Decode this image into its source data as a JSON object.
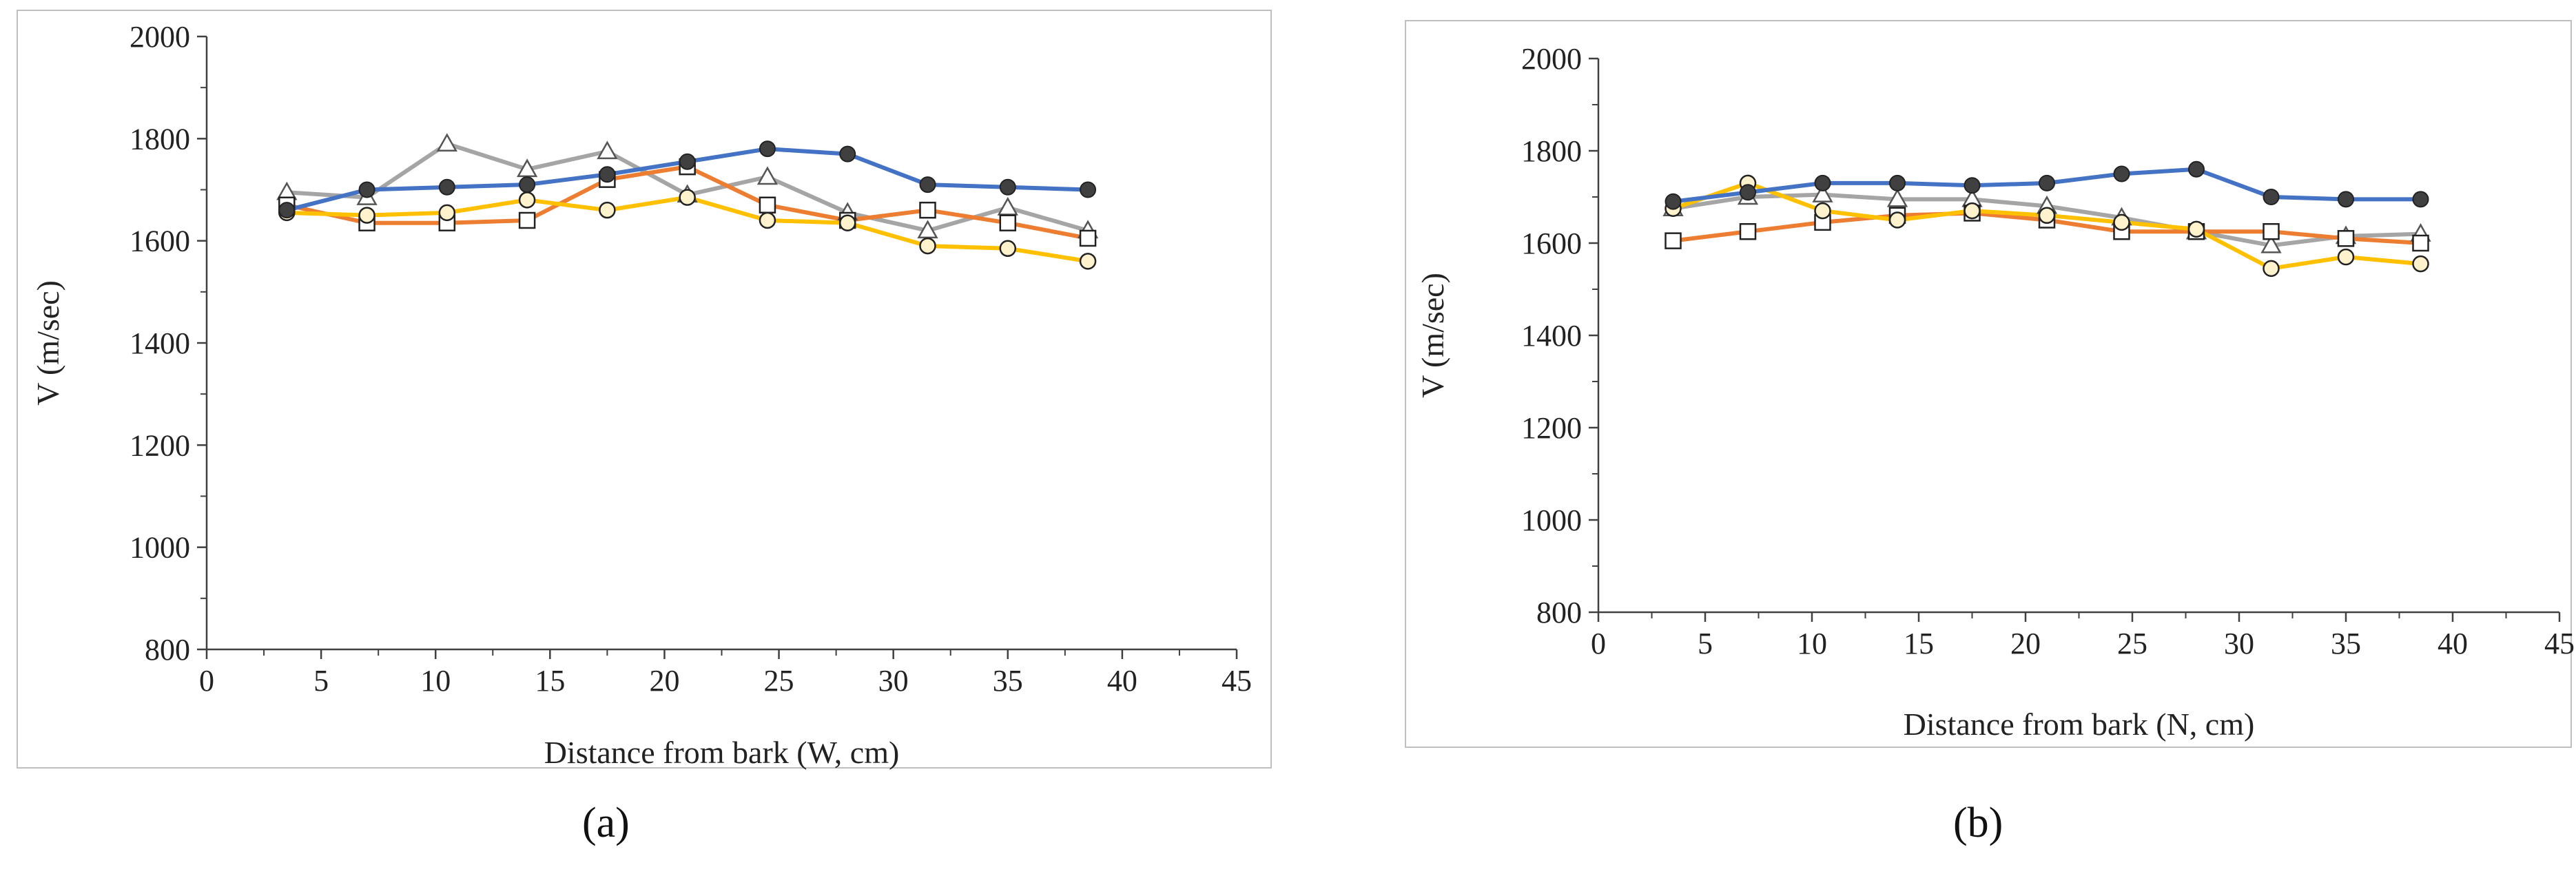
{
  "chart_data": [
    {
      "type": "line",
      "panel_label": "(a)",
      "xlabel": "Distance from bark (W, cm)",
      "ylabel": "V (m/sec)",
      "xlim": [
        0,
        45
      ],
      "ylim": [
        800,
        2000
      ],
      "x_ticks": [
        0,
        5,
        10,
        15,
        20,
        25,
        30,
        35,
        40,
        45
      ],
      "y_ticks": [
        800,
        1000,
        1200,
        1400,
        1600,
        1800,
        2000
      ],
      "x": [
        3.5,
        7,
        10.5,
        14,
        17.5,
        21,
        24.5,
        28,
        31.5,
        35,
        38.5
      ],
      "series": [
        {
          "name": "filled circle (blue)",
          "color": "#4472C4",
          "marker": "circle-filled",
          "values": [
            1660,
            1700,
            1705,
            1710,
            1730,
            1755,
            1780,
            1770,
            1710,
            1705,
            1700
          ]
        },
        {
          "name": "square (orange)",
          "color": "#ED7D31",
          "marker": "square",
          "values": [
            1670,
            1635,
            1635,
            1640,
            1720,
            1745,
            1670,
            1640,
            1660,
            1635,
            1605
          ]
        },
        {
          "name": "triangle (gray)",
          "color": "#A5A5A5",
          "marker": "triangle",
          "values": [
            1695,
            1685,
            1790,
            1740,
            1775,
            1690,
            1725,
            1655,
            1620,
            1665,
            1620
          ]
        },
        {
          "name": "circle (yellow)",
          "color": "#FFC000",
          "marker": "circle-open",
          "values": [
            1655,
            1650,
            1655,
            1680,
            1660,
            1685,
            1640,
            1635,
            1590,
            1585,
            1560
          ]
        }
      ]
    },
    {
      "type": "line",
      "panel_label": "(b)",
      "xlabel": "Distance from bark (N, cm)",
      "ylabel": "V (m/sec)",
      "xlim": [
        0,
        45
      ],
      "ylim": [
        800,
        2000
      ],
      "x_ticks": [
        0,
        5,
        10,
        15,
        20,
        25,
        30,
        35,
        40,
        45
      ],
      "y_ticks": [
        800,
        1000,
        1200,
        1400,
        1600,
        1800,
        2000
      ],
      "x": [
        3.5,
        7,
        10.5,
        14,
        17.5,
        21,
        24.5,
        28,
        31.5,
        35,
        38.5
      ],
      "series": [
        {
          "name": "filled circle (blue)",
          "color": "#4472C4",
          "marker": "circle-filled",
          "values": [
            1690,
            1710,
            1730,
            1730,
            1725,
            1730,
            1750,
            1760,
            1700,
            1695,
            1695
          ]
        },
        {
          "name": "square (orange)",
          "color": "#ED7D31",
          "marker": "square",
          "values": [
            1605,
            1625,
            1645,
            1660,
            1665,
            1650,
            1625,
            1625,
            1625,
            1610,
            1600
          ]
        },
        {
          "name": "triangle (gray)",
          "color": "#A5A5A5",
          "marker": "triangle",
          "values": [
            1675,
            1700,
            1705,
            1695,
            1695,
            1680,
            1655,
            1625,
            1595,
            1615,
            1620
          ]
        },
        {
          "name": "circle (yellow)",
          "color": "#FFC000",
          "marker": "circle-open",
          "values": [
            1675,
            1730,
            1670,
            1650,
            1670,
            1660,
            1645,
            1630,
            1545,
            1570,
            1555
          ]
        }
      ]
    }
  ]
}
